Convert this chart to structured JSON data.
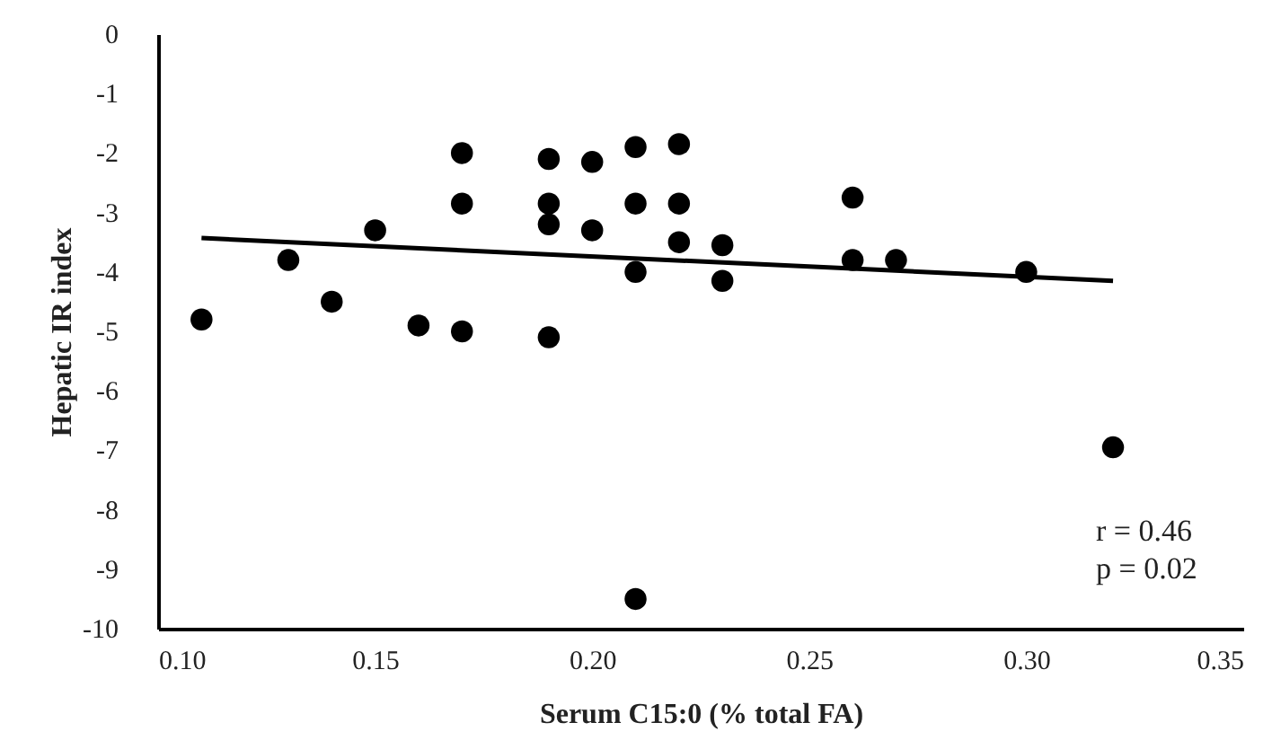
{
  "chart_data": {
    "type": "scatter",
    "xlabel": "Serum C15:0 (% total FA)",
    "ylabel": "Hepatic IR index",
    "grid": false,
    "legend": false,
    "xlim": [
      0.1,
      0.35
    ],
    "xticks": [
      {
        "value": 0.1,
        "label": "0.10"
      },
      0.15,
      {
        "value": 0.2,
        "label": "0.20"
      },
      0.25,
      {
        "value": 0.3,
        "label": "0.30"
      },
      0.35
    ],
    "ylim": [
      -10,
      0
    ],
    "yticks": [
      0,
      -1,
      -2,
      -3,
      -4,
      -5,
      -6,
      -7,
      -8,
      -9,
      -10
    ],
    "annotations": [
      "r = 0.46",
      "p = 0.02"
    ],
    "series": [
      {
        "marker": "circle",
        "color": "#000000",
        "x": [
          0.11,
          0.13,
          0.14,
          0.15,
          0.16,
          0.17,
          0.17,
          0.17,
          0.19,
          0.19,
          0.19,
          0.19,
          0.2,
          0.2,
          0.21,
          0.21,
          0.21,
          0.21,
          0.22,
          0.22,
          0.22,
          0.23,
          0.23,
          0.26,
          0.26,
          0.27,
          0.3,
          0.32
        ],
        "values": [
          -4.8,
          -3.8,
          -4.5,
          -3.3,
          -4.9,
          -2.0,
          -2.85,
          -5.0,
          -2.1,
          -2.85,
          -3.2,
          -5.1,
          -2.15,
          -3.3,
          -1.9,
          -2.85,
          -4.0,
          -9.5,
          -1.85,
          -2.85,
          -3.5,
          -3.55,
          -4.15,
          -2.75,
          -3.8,
          -3.8,
          -4.0,
          -6.95
        ]
      },
      {
        "type": "line",
        "color": "#000000",
        "x": [
          0.11,
          0.32
        ],
        "values": [
          -3.43,
          -4.15
        ]
      }
    ]
  }
}
